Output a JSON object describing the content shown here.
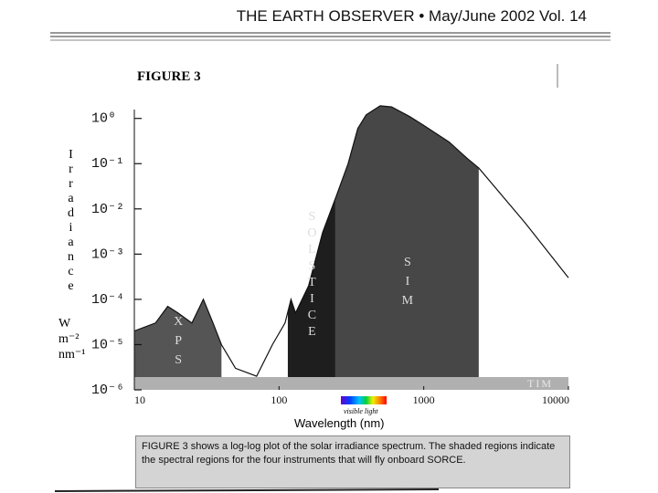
{
  "header": "THE EARTH OBSERVER • May/June 2002  Vol. 14",
  "chart_data": {
    "type": "line",
    "title": "FIGURE 3",
    "y_label": "Irradiance",
    "y_units": "W\nm⁻²\nnm⁻¹",
    "x_label": "Wavelength (nm)",
    "visible_label": "visible light",
    "xscale": "log",
    "yscale": "log",
    "xlim": [
      10,
      10000
    ],
    "ylim": [
      1e-06,
      2.5
    ],
    "xticks": [
      10,
      100,
      1000,
      10000
    ],
    "yticks": [
      {
        "value": 1,
        "label": "10⁰"
      },
      {
        "value": 0.1,
        "label": "10⁻¹"
      },
      {
        "value": 0.01,
        "label": "10⁻²"
      },
      {
        "value": 0.001,
        "label": "10⁻³"
      },
      {
        "value": 0.0001,
        "label": "10⁻⁴"
      },
      {
        "value": 1e-05,
        "label": "10⁻⁵"
      },
      {
        "value": 1e-06,
        "label": "10⁻⁶"
      }
    ],
    "color": "#111111",
    "x": [
      10,
      14,
      17,
      20,
      25,
      30,
      35,
      40,
      50,
      70,
      90,
      110,
      121,
      130,
      160,
      200,
      250,
      300,
      350,
      400,
      500,
      600,
      800,
      1000,
      1500,
      2000,
      2400,
      5000,
      10000
    ],
    "values": [
      2e-05,
      3e-05,
      7e-05,
      5e-05,
      3e-05,
      0.0001,
      3e-05,
      1e-05,
      3e-06,
      2e-06,
      1e-05,
      3e-05,
      0.0001,
      5e-05,
      0.0002,
      0.003,
      0.02,
      0.1,
      0.6,
      1.2,
      1.9,
      1.8,
      1.1,
      0.7,
      0.3,
      0.13,
      0.08,
      0.005,
      0.0003
    ],
    "regions": [
      {
        "name": "XPS",
        "range": [
          10,
          40
        ],
        "color": "#555555"
      },
      {
        "name": "SOLSTICE",
        "range": [
          115,
          245
        ],
        "color": "#1e1e1e"
      },
      {
        "name": "SIM",
        "range": [
          245,
          2400
        ],
        "color": "#474747"
      },
      {
        "name": "TIM",
        "range": [
          10,
          10000
        ],
        "color": "#b0b0b0"
      }
    ]
  },
  "caption": "FIGURE 3 shows a log-log plot of the solar irradiance spectrum. The shaded regions indicate the spectral regions for the four instruments that will fly onboard SORCE."
}
